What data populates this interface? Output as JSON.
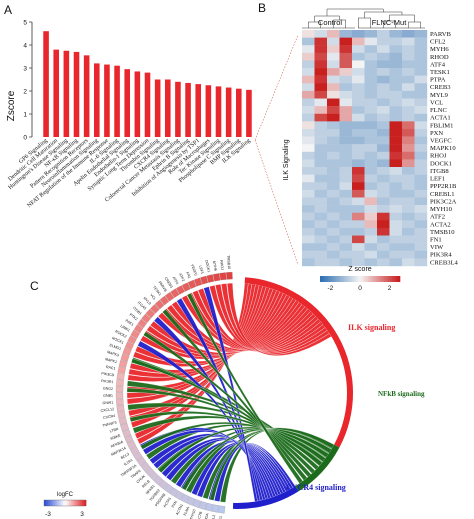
{
  "panels": {
    "a": "A",
    "b": "B",
    "c": "C"
  },
  "chart_data": [
    {
      "type": "bar",
      "ylabel": "Zscore",
      "ylim": [
        0,
        5
      ],
      "yticks": [
        "0",
        "1",
        "2",
        "3",
        "4",
        "5"
      ],
      "bar_color": "#e8262b",
      "categories": [
        "GP6 Signaling",
        "Dendritic Cell Maturation",
        "Huntington's Disease Signaling",
        "NF-κB Signaling",
        "Pattern Recognition Receptors",
        "Neuroinflammation Signaling",
        "NFAT Regulation of the Immune Response",
        "IL-6 Signaling",
        "Apelin Endothelial Signaling",
        "Endothelin-1 Signaling",
        "Synaptic Long Term Depression",
        "Thrombin Signaling",
        "CXCR4 Signaling",
        "Colorectal Cancer Metastasis Signaling",
        "Ephrin B Signaling",
        "Inhibition of Angiogenesis by TSP1",
        "Role of Macrophages",
        "Tec Kinase Signaling",
        "Phospholipase C Signaling",
        "BMP Signaling",
        "ILK Signaling"
      ],
      "values": [
        4.6,
        3.8,
        3.75,
        3.7,
        3.55,
        3.2,
        3.15,
        3.1,
        2.95,
        2.85,
        2.8,
        2.5,
        2.5,
        2.4,
        2.35,
        2.3,
        2.25,
        2.2,
        2.15,
        2.1,
        2.05
      ]
    },
    {
      "type": "heatmap",
      "groups": [
        "Control",
        "FLNC-Mut"
      ],
      "row_group_label": "ILK Signaling",
      "genes": [
        "PARVB",
        "CFL2",
        "MYH6",
        "RHOD",
        "ATF4",
        "TESK1",
        "PTPA",
        "CREB3",
        "MYL9",
        "VCL",
        "FLNC",
        "ACTA1",
        "FBLIM1",
        "PXN",
        "VEGFC",
        "MAPK10",
        "RHOJ",
        "DOCK1",
        "ITGB8",
        "LEF1",
        "PPP2R1B",
        "CREBL1",
        "PIK3C2A",
        "MYH10",
        "ATF2",
        "ACTA2",
        "TMSB10",
        "FN1",
        "VIW",
        "PIK3R4",
        "CREB3L4"
      ],
      "colorbar_label": "Z score",
      "colorbar_ticks": [
        "-2",
        "0",
        "2"
      ],
      "values": [
        [
          0.2,
          -0.4,
          0.6,
          -1.0,
          -1.2,
          -1.0,
          -0.6,
          -1.0,
          -1.2,
          -1.0
        ],
        [
          -0.8,
          2.0,
          -0.4,
          2.2,
          0.6,
          -0.2,
          -0.6,
          -0.6,
          -0.4,
          -0.8
        ],
        [
          -0.2,
          2.0,
          0.4,
          2.0,
          -0.4,
          -0.8,
          -0.4,
          -0.8,
          -0.6,
          -0.8
        ],
        [
          0.4,
          1.8,
          -0.2,
          1.6,
          -0.8,
          -0.6,
          -0.8,
          -1.0,
          -0.6,
          -0.8
        ],
        [
          -0.6,
          2.0,
          -0.4,
          1.6,
          0.0,
          -0.8,
          -1.0,
          -1.0,
          -0.8,
          -0.8
        ],
        [
          -0.4,
          2.2,
          0.8,
          0.4,
          -0.4,
          -0.8,
          -0.6,
          -0.8,
          -0.6,
          -0.8
        ],
        [
          0.6,
          2.0,
          -0.4,
          -0.6,
          -0.2,
          -0.8,
          -1.0,
          -0.8,
          -0.8,
          -0.4
        ],
        [
          -0.4,
          2.2,
          0.6,
          -0.8,
          -0.6,
          -0.8,
          -0.6,
          -0.8,
          -0.4,
          -0.8
        ],
        [
          0.8,
          1.8,
          0.2,
          -0.4,
          -0.6,
          -0.8,
          -0.6,
          -0.6,
          -0.8,
          -0.8
        ],
        [
          -0.6,
          -0.2,
          2.2,
          -0.2,
          -0.6,
          -0.6,
          -0.8,
          -0.6,
          -0.4,
          -0.6
        ],
        [
          -0.4,
          0.6,
          1.8,
          0.8,
          -0.8,
          -0.6,
          -0.4,
          -0.8,
          -0.6,
          -0.4
        ],
        [
          -0.6,
          1.8,
          2.2,
          0.8,
          -0.4,
          -0.8,
          -0.6,
          -0.8,
          -0.6,
          -0.8
        ],
        [
          0.2,
          -0.6,
          -0.8,
          -1.0,
          -1.0,
          -1.0,
          -0.8,
          2.2,
          1.4,
          -0.4
        ],
        [
          -0.4,
          -0.6,
          -0.6,
          -1.0,
          -0.8,
          -0.8,
          -1.0,
          2.2,
          1.6,
          -0.6
        ],
        [
          -0.2,
          -0.6,
          -0.8,
          -1.0,
          -1.0,
          -0.8,
          -0.8,
          2.2,
          1.2,
          -0.8
        ],
        [
          0.0,
          -0.8,
          -0.8,
          -0.8,
          -0.6,
          -0.6,
          -1.0,
          2.2,
          1.0,
          -0.6
        ],
        [
          -0.6,
          -0.8,
          -0.6,
          -0.8,
          -0.6,
          -0.8,
          -0.6,
          2.0,
          1.4,
          -0.8
        ],
        [
          -0.4,
          -0.8,
          -0.8,
          -0.8,
          -1.0,
          -0.8,
          -1.0,
          2.2,
          1.0,
          -0.6
        ],
        [
          -0.6,
          -0.6,
          -0.8,
          -0.6,
          2.0,
          -0.8,
          -0.6,
          -0.4,
          -0.8,
          -0.6
        ],
        [
          -0.2,
          -0.8,
          -0.8,
          -0.6,
          1.8,
          -0.6,
          -0.8,
          -0.6,
          -0.6,
          -0.8
        ],
        [
          -0.6,
          -0.6,
          -0.8,
          -0.4,
          2.2,
          -0.8,
          -0.6,
          -0.8,
          -0.6,
          -0.8
        ],
        [
          -0.4,
          -0.8,
          -0.6,
          -0.8,
          1.6,
          -0.4,
          -0.6,
          -0.8,
          -0.8,
          -0.6
        ],
        [
          -0.6,
          -0.6,
          -0.8,
          -0.6,
          -0.4,
          0.6,
          -0.8,
          -0.6,
          -0.6,
          -0.8
        ],
        [
          -0.8,
          -0.6,
          -0.8,
          -0.8,
          -0.8,
          -0.4,
          -0.6,
          -0.4,
          -0.6,
          -0.4
        ],
        [
          -0.6,
          -0.8,
          -0.6,
          -0.8,
          1.2,
          0.4,
          2.0,
          -0.6,
          -0.8,
          -0.6
        ],
        [
          -0.8,
          -0.6,
          -0.8,
          -0.6,
          -0.6,
          0.6,
          2.2,
          -0.4,
          -0.6,
          -0.8
        ],
        [
          -0.6,
          -0.8,
          -0.6,
          -0.8,
          -0.8,
          -0.6,
          2.0,
          -0.4,
          -0.8,
          -0.6
        ],
        [
          -0.4,
          -0.6,
          -0.8,
          -0.6,
          1.8,
          -0.4,
          -0.8,
          -0.6,
          -0.6,
          -0.6
        ],
        [
          -0.8,
          -0.8,
          -0.6,
          -0.8,
          -0.4,
          -0.8,
          -0.6,
          -0.8,
          -0.8,
          -0.6
        ],
        [
          -0.6,
          -0.6,
          -0.8,
          -0.6,
          -0.6,
          -0.4,
          -0.8,
          -0.6,
          -0.6,
          -0.8
        ],
        [
          -0.8,
          -0.6,
          -0.6,
          -0.8,
          -0.6,
          -0.8,
          -0.6,
          -0.8,
          -0.4,
          -0.6
        ]
      ]
    },
    {
      "type": "chord",
      "pathways": [
        {
          "name": "ILK signaling",
          "color": "#e8262b"
        },
        {
          "name": "NFkB signaling",
          "color": "#1c6b1c"
        },
        {
          "name": "CXCR4 signaling",
          "color": "#1f1fcc"
        }
      ],
      "legend_title": "logFC",
      "legend_ticks": [
        "-3",
        "3"
      ],
      "genes": [
        "PDX1",
        "CFL2",
        "RHOA",
        "ACTB",
        "MYH10",
        "FLNA",
        "ACTN1",
        "PXN",
        "ACTA1",
        "PDGFRB",
        "TGFBR2",
        "NFKB1",
        "RELB",
        "CHUK",
        "TRAF6",
        "TNFRSF1A",
        "IL1R1",
        "BCL3",
        "MAP3K14",
        "NFKBIA",
        "IKBKE",
        "LTBR",
        "TNFAIP3",
        "CXCR4",
        "CXCL12",
        "GNAI1",
        "GNB1",
        "GNG2",
        "PIK3R1",
        "PIK3CD",
        "RAC1",
        "MAPK1",
        "MAPK3",
        "ELMO1",
        "ROCK1",
        "ROCK2",
        "LIMK1",
        "PAK1",
        "PTK2",
        "ITGB1",
        "ITGA5",
        "MYL9",
        "VCL",
        "TESK1",
        "PARVB",
        "CREB3",
        "ATF4",
        "ATF2",
        "FN1",
        "VEGFC",
        "LEF1",
        "DOCK1",
        "MYH6",
        "RHOJ",
        "TMSB10"
      ]
    }
  ]
}
